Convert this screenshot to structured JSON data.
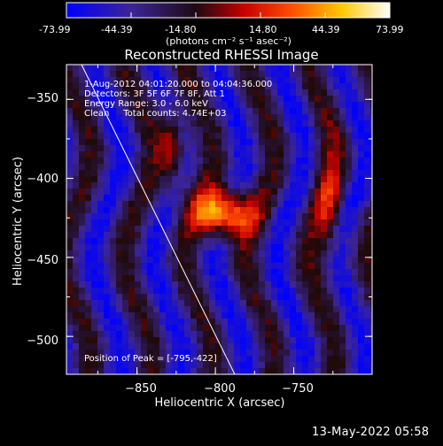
{
  "colorbar": {
    "ticks": [
      "-73.99",
      "-44.39",
      "-14.80",
      "14.80",
      "44.39",
      "73.99"
    ],
    "unit_label": "(photons cm⁻² s⁻¹ asec⁻²)",
    "min": -73.99,
    "max": 73.99
  },
  "chart_data": {
    "type": "heatmap",
    "title": "Reconstructed RHESSI Image",
    "xlabel": "Heliocentric X (arcsec)",
    "ylabel": "Heliocentric Y (arcsec)",
    "xlim": [
      -895,
      -700
    ],
    "ylim": [
      -524,
      -328
    ],
    "x_ticks": [
      -850,
      -800,
      -750
    ],
    "x_tick_labels": [
      "−850",
      "−800",
      "−750"
    ],
    "y_ticks": [
      -350,
      -400,
      -450,
      -500
    ],
    "y_tick_labels": [
      "−350",
      "−400",
      "−450",
      "−500"
    ],
    "annotations": [
      "1-Aug-2012 04:01:20.000 to 04:04:36.000",
      "Detectors: 3F 5F 6F 7F 8F, Att 1",
      "Energy Range: 3.0 - 6.0 keV",
      "Clean     Total counts: 4.74E+03"
    ],
    "peak_label": "Position of Peak = [-795,-422]",
    "peak": [
      -795,
      -422
    ],
    "colormap": [
      "#0000ff",
      "#3c2596",
      "#1e0a0a",
      "#c80000",
      "#ff5000",
      "#ffc800",
      "#ffffff"
    ]
  },
  "footer": {
    "timestamp": "13-May-2022 05:58"
  }
}
